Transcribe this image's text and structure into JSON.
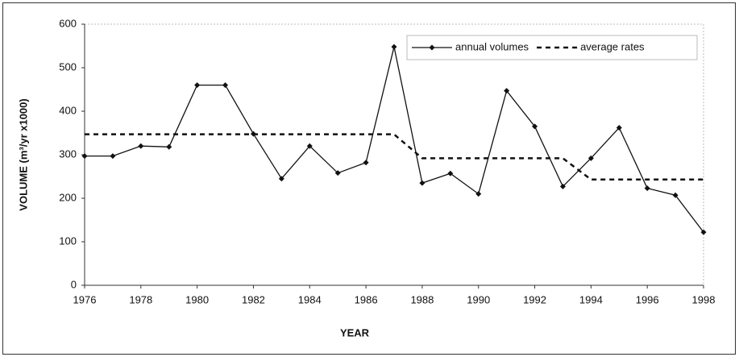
{
  "chart_data": {
    "type": "line",
    "xlabel": "YEAR",
    "ylabel": "VOLUME (m³/yr x1000)",
    "x": [
      1976,
      1977,
      1978,
      1979,
      1980,
      1981,
      1982,
      1983,
      1984,
      1985,
      1986,
      1987,
      1988,
      1989,
      1990,
      1991,
      1992,
      1993,
      1994,
      1995,
      1996,
      1997,
      1998
    ],
    "series": [
      {
        "name": "annual volumes",
        "color": "#111111",
        "style": "solid",
        "marker": "diamond",
        "values": [
          297,
          297,
          320,
          318,
          460,
          460,
          348,
          245,
          320,
          258,
          282,
          548,
          235,
          257,
          210,
          447,
          365,
          227,
          292,
          362,
          223,
          207,
          122
        ]
      },
      {
        "name": "average rates",
        "color": "#111111",
        "style": "dashed",
        "x": [
          1976,
          1987,
          1988,
          1993,
          1994,
          1998
        ],
        "values": [
          347,
          347,
          292,
          292,
          243,
          243
        ]
      }
    ],
    "xlim": [
      1976,
      1998
    ],
    "xticks": [
      1976,
      1978,
      1980,
      1982,
      1984,
      1986,
      1988,
      1990,
      1992,
      1994,
      1996,
      1998
    ],
    "ylim": [
      0,
      600
    ],
    "yticks": [
      0,
      100,
      200,
      300,
      400,
      500,
      600
    ],
    "grid": false,
    "legend": "upper right"
  }
}
